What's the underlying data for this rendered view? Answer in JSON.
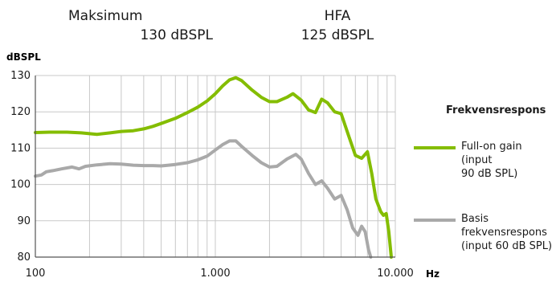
{
  "header": {
    "left": {
      "line1": "Maksimum",
      "line2": "130 dBSPL"
    },
    "right": {
      "line1": "HFA",
      "line2": "125 dBSPL"
    }
  },
  "colors": {
    "full_on": "#84bd00",
    "basis": "#a9a9a9",
    "grid": "#c8c8c8",
    "axis": "#555555"
  },
  "chart_data": {
    "type": "line",
    "title": "",
    "xlabel": "Hz",
    "ylabel": "dBSPL",
    "xscale": "log",
    "xlim": [
      100,
      10000
    ],
    "ylim": [
      80,
      130
    ],
    "grid": true,
    "legend_position": "right",
    "legend_title": "Frekvensrespons",
    "x_ticks": [
      100,
      1000,
      10000
    ],
    "x_tick_labels": [
      "100",
      "1.000",
      "10.000"
    ],
    "y_ticks": [
      80,
      90,
      100,
      110,
      120,
      130
    ],
    "y_tick_labels": [
      "80",
      "90",
      "100",
      "110",
      "120",
      "130"
    ],
    "series": [
      {
        "name": "Full-on gain (input 90 dB SPL)",
        "name_lines": [
          "Full-on gain (input",
          "90 dB SPL)"
        ],
        "color": "#84bd00",
        "points": [
          [
            100,
            114.3
          ],
          [
            120,
            114.4
          ],
          [
            150,
            114.4
          ],
          [
            180,
            114.2
          ],
          [
            220,
            113.8
          ],
          [
            260,
            114.2
          ],
          [
            300,
            114.6
          ],
          [
            350,
            114.8
          ],
          [
            400,
            115.3
          ],
          [
            450,
            116.0
          ],
          [
            500,
            116.8
          ],
          [
            600,
            118.2
          ],
          [
            700,
            119.8
          ],
          [
            800,
            121.3
          ],
          [
            900,
            123.0
          ],
          [
            1000,
            125.0
          ],
          [
            1100,
            127.2
          ],
          [
            1200,
            128.8
          ],
          [
            1300,
            129.4
          ],
          [
            1400,
            128.6
          ],
          [
            1600,
            126.0
          ],
          [
            1800,
            124.0
          ],
          [
            2000,
            122.8
          ],
          [
            2200,
            122.8
          ],
          [
            2500,
            124.0
          ],
          [
            2700,
            125.0
          ],
          [
            3000,
            123.2
          ],
          [
            3300,
            120.5
          ],
          [
            3600,
            119.8
          ],
          [
            3900,
            123.5
          ],
          [
            4200,
            122.5
          ],
          [
            4600,
            120.0
          ],
          [
            5000,
            119.5
          ],
          [
            5500,
            113.5
          ],
          [
            6000,
            108.0
          ],
          [
            6500,
            107.2
          ],
          [
            7000,
            109.0
          ],
          [
            7400,
            103.0
          ],
          [
            7800,
            96.0
          ],
          [
            8300,
            92.5
          ],
          [
            8600,
            91.5
          ],
          [
            8900,
            92.0
          ],
          [
            9200,
            87.0
          ],
          [
            9500,
            80.0
          ]
        ]
      },
      {
        "name": "Basis frekvensrespons (input 60 dB SPL)",
        "name_lines": [
          "Basis",
          "frekvensrespons",
          "(input 60 dB SPL)"
        ],
        "color": "#a9a9a9",
        "points": [
          [
            100,
            102.3
          ],
          [
            108,
            102.6
          ],
          [
            115,
            103.5
          ],
          [
            125,
            103.8
          ],
          [
            140,
            104.3
          ],
          [
            160,
            104.8
          ],
          [
            175,
            104.3
          ],
          [
            190,
            105.0
          ],
          [
            220,
            105.4
          ],
          [
            260,
            105.7
          ],
          [
            300,
            105.6
          ],
          [
            350,
            105.3
          ],
          [
            400,
            105.2
          ],
          [
            450,
            105.2
          ],
          [
            500,
            105.1
          ],
          [
            550,
            105.3
          ],
          [
            600,
            105.5
          ],
          [
            700,
            106.0
          ],
          [
            800,
            106.8
          ],
          [
            900,
            107.8
          ],
          [
            1000,
            109.5
          ],
          [
            1100,
            111.0
          ],
          [
            1200,
            112.0
          ],
          [
            1300,
            112.0
          ],
          [
            1400,
            110.5
          ],
          [
            1600,
            108.0
          ],
          [
            1800,
            106.0
          ],
          [
            2000,
            104.8
          ],
          [
            2200,
            105.0
          ],
          [
            2500,
            107.0
          ],
          [
            2800,
            108.3
          ],
          [
            3000,
            107.0
          ],
          [
            3300,
            103.0
          ],
          [
            3600,
            100.0
          ],
          [
            3900,
            101.0
          ],
          [
            4200,
            99.0
          ],
          [
            4600,
            96.0
          ],
          [
            5000,
            97.0
          ],
          [
            5400,
            93.0
          ],
          [
            5800,
            88.0
          ],
          [
            6200,
            86.0
          ],
          [
            6500,
            88.5
          ],
          [
            6800,
            87.0
          ],
          [
            7100,
            82.0
          ],
          [
            7300,
            80.0
          ]
        ]
      }
    ]
  }
}
